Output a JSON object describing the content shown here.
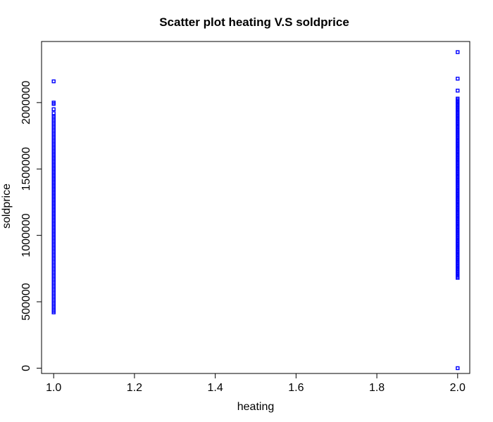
{
  "chart_data": {
    "type": "scatter",
    "title": "Scatter plot heating V.S soldprice",
    "xlabel": "heating",
    "ylabel": "soldprice",
    "xlim": [
      0.97,
      2.03
    ],
    "ylim": [
      -40000,
      2460000
    ],
    "x_ticks": [
      1.0,
      1.2,
      1.4,
      1.6,
      1.8,
      2.0
    ],
    "x_tick_labels": [
      "1.0",
      "1.2",
      "1.4",
      "1.6",
      "1.8",
      "2.0"
    ],
    "y_ticks": [
      0,
      500000,
      1000000,
      1500000,
      2000000
    ],
    "y_tick_labels": [
      "0",
      "500000",
      "1000000",
      "1500000",
      "2000000"
    ],
    "grid": false,
    "point_color": "#0000ff",
    "series": [
      {
        "x_value": 1.0,
        "y_range": [
          420000,
          1900000
        ],
        "outliers": [
          1920000,
          1950000,
          1990000,
          2000000,
          2160000
        ]
      },
      {
        "x_value": 2.0,
        "y_range": [
          680000,
          2030000
        ],
        "outliers": [
          0,
          2090000,
          2180000,
          2380000
        ]
      }
    ]
  }
}
